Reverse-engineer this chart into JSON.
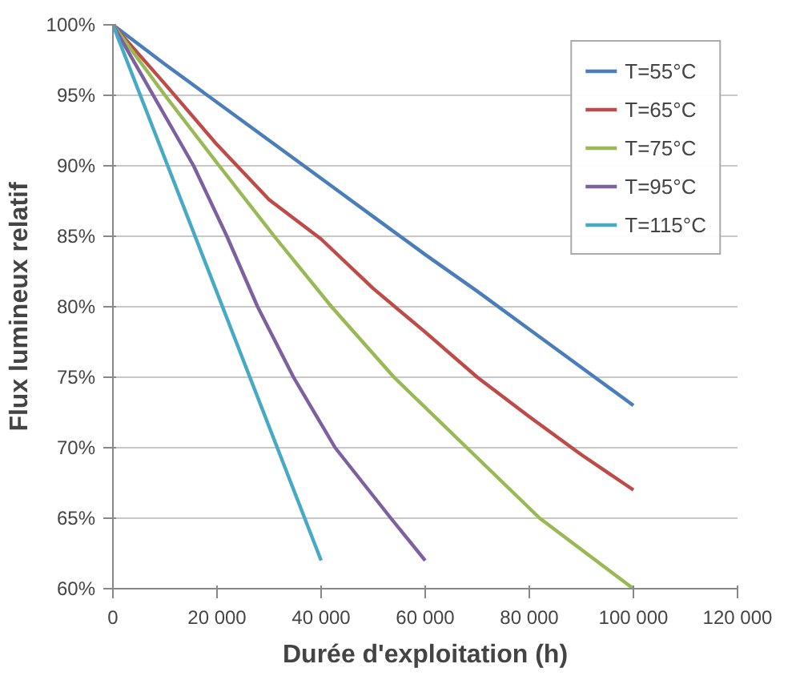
{
  "chart_data": {
    "type": "line",
    "xlabel": "Durée d'exploitation (h)",
    "ylabel": "Flux lumineux relatif",
    "xlim": [
      0,
      120000
    ],
    "xticks": [
      {
        "value": 0,
        "label": "0"
      },
      {
        "value": 20000,
        "label": "20 000"
      },
      {
        "value": 40000,
        "label": "40 000"
      },
      {
        "value": 60000,
        "label": "60 000"
      },
      {
        "value": 80000,
        "label": "80 000"
      },
      {
        "value": 100000,
        "label": "100 000"
      },
      {
        "value": 120000,
        "label": "120 000"
      }
    ],
    "ylim": [
      60,
      100
    ],
    "yticks": [
      {
        "value": 60,
        "label": "60%"
      },
      {
        "value": 65,
        "label": "65%"
      },
      {
        "value": 70,
        "label": "70%"
      },
      {
        "value": 75,
        "label": "75%"
      },
      {
        "value": 80,
        "label": "80%"
      },
      {
        "value": 85,
        "label": "85%"
      },
      {
        "value": 90,
        "label": "90%"
      },
      {
        "value": 95,
        "label": "95%"
      },
      {
        "value": 100,
        "label": "100%"
      }
    ],
    "grid": "y",
    "legend": "top right",
    "marker": "none",
    "line_style": "solid",
    "series": [
      {
        "name": "T=55°C",
        "color": "#4a7ebb",
        "x": [
          0,
          10000,
          20000,
          30000,
          40000,
          50000,
          60000,
          70000,
          80000,
          90000,
          100000
        ],
        "values": [
          100,
          97.2,
          94.5,
          91.8,
          89.1,
          86.4,
          83.7,
          81.1,
          78.4,
          75.7,
          73
        ]
      },
      {
        "name": "T=65°C",
        "color": "#be4b48",
        "x": [
          0,
          10000,
          20000,
          30000,
          40000,
          50000,
          60000,
          70000,
          80000,
          90000,
          100000
        ],
        "values": [
          100,
          95.8,
          91.5,
          87.6,
          84.8,
          81.3,
          78.2,
          75,
          72.2,
          69.5,
          67
        ]
      },
      {
        "name": "T=75°C",
        "color": "#98b954",
        "x": [
          0,
          10000,
          20000,
          31000,
          42000,
          54000,
          68000,
          82000,
          100000
        ],
        "values": [
          100,
          95,
          90.2,
          85,
          80,
          75,
          70,
          65,
          60
        ]
      },
      {
        "name": "T=95°C",
        "color": "#7d60a0",
        "x": [
          0,
          15500,
          21900,
          27800,
          34700,
          42700,
          53400,
          60000
        ],
        "values": [
          100,
          90,
          85,
          80,
          75,
          70,
          65,
          62
        ]
      },
      {
        "name": "T=115°C",
        "color": "#46aac5",
        "x": [
          0,
          40000
        ],
        "values": [
          100,
          62
        ]
      }
    ]
  }
}
